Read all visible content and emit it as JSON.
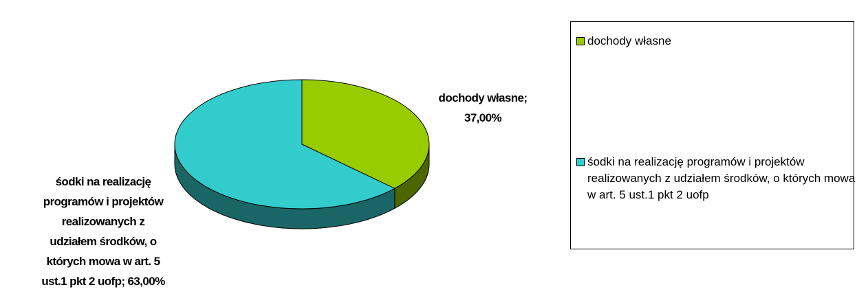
{
  "chart_data": {
    "type": "pie",
    "style": "3d",
    "series": [
      {
        "name": "dochody własne",
        "value": 37.0,
        "color": "#99cc00",
        "side_color": "#4d6600",
        "data_label": [
          "dochody własne;",
          "37,00%"
        ]
      },
      {
        "name": "śodki na realizację programów i projektów realizowanych z udziałem środków, o których mowa w art. 5 ust.1 pkt 2 uofp",
        "value": 63.0,
        "color": "#33cccc",
        "side_color": "#1a6666",
        "data_label": [
          "śodki na realizację",
          "programów i projektów",
          "realizowanych z",
          "udziałem środków, o",
          "których mowa w art. 5",
          "ust.1 pkt 2 uofp; 63,00%"
        ]
      }
    ],
    "legend": {
      "placement": "right",
      "entries": [
        "dochody własne",
        "śodki na realizację programów i projektów realizowanych z udziałem środków, o których mowa w art. 5 ust.1 pkt 2 uofp"
      ]
    }
  }
}
